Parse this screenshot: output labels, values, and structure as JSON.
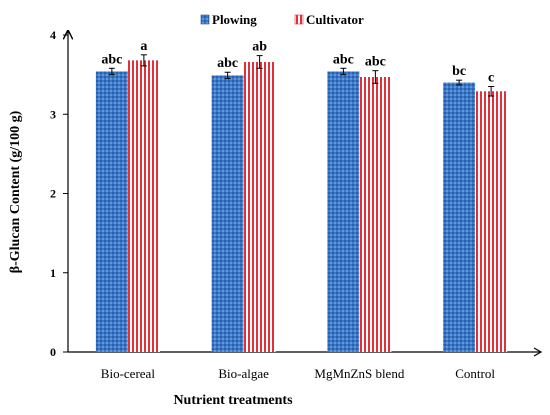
{
  "chart_data": {
    "type": "bar",
    "xlabel": "Nutrient treatments",
    "ylabel": "β-Glucan Content (g/100 g)",
    "ylim": [
      0,
      4
    ],
    "yticks": [
      0,
      1,
      2,
      3,
      4
    ],
    "grid": false,
    "legend_position": "top",
    "categories": [
      "Bio-cereal",
      "Bio-algae",
      "MgMnZnS blend",
      "Control"
    ],
    "series": [
      {
        "name": "Plowing",
        "color": "#2f6fbf",
        "pattern": "dotted-blue",
        "values": [
          3.54,
          3.49,
          3.54,
          3.4
        ],
        "errors": [
          0.04,
          0.04,
          0.04,
          0.03
        ],
        "letters": [
          "abc",
          "abc",
          "abc",
          "bc"
        ]
      },
      {
        "name": "Cultivator",
        "color": "#e0303a",
        "pattern": "vertical-stripes-red",
        "values": [
          3.68,
          3.66,
          3.47,
          3.29
        ],
        "errors": [
          0.07,
          0.08,
          0.08,
          0.06
        ],
        "letters": [
          "a",
          "ab",
          "abc",
          "c"
        ]
      }
    ]
  }
}
